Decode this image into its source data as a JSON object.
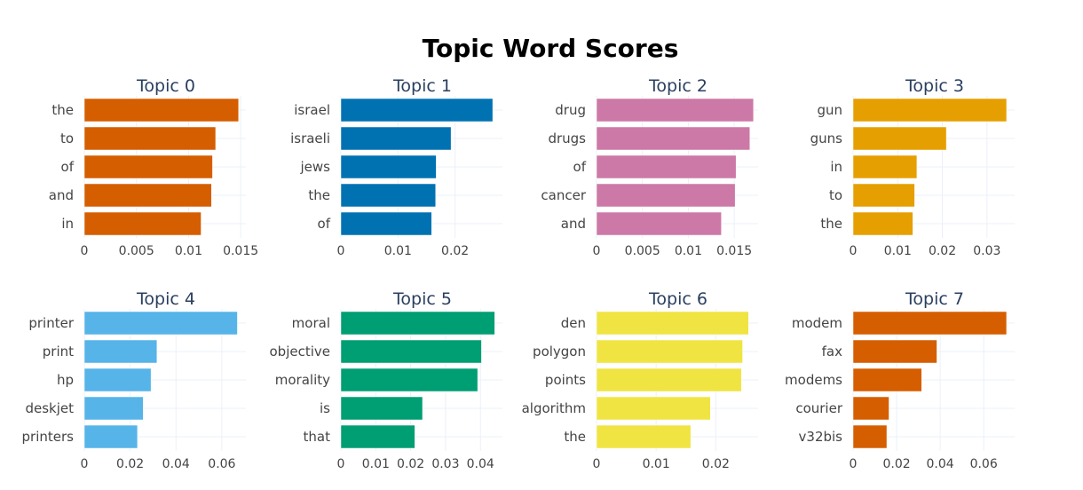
{
  "title": "Topic Word Scores",
  "chart_data": [
    {
      "type": "bar",
      "orientation": "horizontal",
      "title": "Topic 0",
      "color": "#D55E00",
      "categories": [
        "the",
        "to",
        "of",
        "and",
        "in"
      ],
      "values": [
        0.0148,
        0.0126,
        0.0123,
        0.0122,
        0.0112
      ],
      "xlim": [
        0,
        0.0155
      ],
      "xticks": [
        0,
        0.005,
        0.01,
        0.015
      ],
      "xtick_labels": [
        "0",
        "0.005",
        "0.01",
        "0.015"
      ],
      "grid": true
    },
    {
      "type": "bar",
      "orientation": "horizontal",
      "title": "Topic 1",
      "color": "#0072B2",
      "categories": [
        "israel",
        "israeli",
        "jews",
        "the",
        "of"
      ],
      "values": [
        0.0266,
        0.0193,
        0.0167,
        0.0166,
        0.0159
      ],
      "xlim": [
        0,
        0.0283
      ],
      "xticks": [
        0,
        0.01,
        0.02
      ],
      "xtick_labels": [
        "0",
        "0.01",
        "0.02"
      ],
      "grid": true
    },
    {
      "type": "bar",
      "orientation": "horizontal",
      "title": "Topic 2",
      "color": "#CC79A7",
      "categories": [
        "drug",
        "drugs",
        "of",
        "cancer",
        "and"
      ],
      "values": [
        0.0171,
        0.0167,
        0.0152,
        0.0151,
        0.0136
      ],
      "xlim": [
        0,
        0.0176
      ],
      "xticks": [
        0,
        0.005,
        0.01,
        0.015
      ],
      "xtick_labels": [
        "0",
        "0.005",
        "0.01",
        "0.015"
      ],
      "grid": true
    },
    {
      "type": "bar",
      "orientation": "horizontal",
      "title": "Topic 3",
      "color": "#E69F00",
      "categories": [
        "gun",
        "guns",
        "in",
        "to",
        "the"
      ],
      "values": [
        0.0344,
        0.0209,
        0.0143,
        0.0138,
        0.0134
      ],
      "xlim": [
        0,
        0.0362
      ],
      "xticks": [
        0,
        0.01,
        0.02,
        0.03
      ],
      "xtick_labels": [
        "0",
        "0.01",
        "0.02",
        "0.03"
      ],
      "grid": true
    },
    {
      "type": "bar",
      "orientation": "horizontal",
      "title": "Topic 4",
      "color": "#56B4E9",
      "categories": [
        "printer",
        "print",
        "hp",
        "deskjet",
        "printers"
      ],
      "values": [
        0.0668,
        0.0317,
        0.0291,
        0.0257,
        0.0232
      ],
      "xlim": [
        0,
        0.0705
      ],
      "xticks": [
        0,
        0.02,
        0.04,
        0.06
      ],
      "xtick_labels": [
        "0",
        "0.02",
        "0.04",
        "0.06"
      ],
      "grid": true
    },
    {
      "type": "bar",
      "orientation": "horizontal",
      "title": "Topic 5",
      "color": "#009E73",
      "categories": [
        "moral",
        "objective",
        "morality",
        "is",
        "that"
      ],
      "values": [
        0.0441,
        0.0403,
        0.0392,
        0.0234,
        0.0212
      ],
      "xlim": [
        0,
        0.0463
      ],
      "xticks": [
        0,
        0.01,
        0.02,
        0.03,
        0.04
      ],
      "xtick_labels": [
        "0",
        "0.01",
        "0.02",
        "0.03",
        "0.04"
      ],
      "grid": true
    },
    {
      "type": "bar",
      "orientation": "horizontal",
      "title": "Topic 6",
      "color": "#F0E442",
      "categories": [
        "den",
        "polygon",
        "points",
        "algorithm",
        "the"
      ],
      "values": [
        0.0255,
        0.0245,
        0.0243,
        0.0191,
        0.0158
      ],
      "xlim": [
        0,
        0.0271
      ],
      "xticks": [
        0,
        0.01,
        0.02
      ],
      "xtick_labels": [
        "0",
        "0.01",
        "0.02"
      ],
      "grid": true
    },
    {
      "type": "bar",
      "orientation": "horizontal",
      "title": "Topic 7",
      "color": "#D55E00",
      "categories": [
        "modem",
        "fax",
        "modems",
        "courier",
        "v32bis"
      ],
      "values": [
        0.0705,
        0.0385,
        0.0315,
        0.0165,
        0.0155
      ],
      "xlim": [
        0,
        0.0742
      ],
      "xticks": [
        0,
        0.02,
        0.04,
        0.06
      ],
      "xtick_labels": [
        "0",
        "0.02",
        "0.04",
        "0.06"
      ],
      "grid": true
    }
  ]
}
